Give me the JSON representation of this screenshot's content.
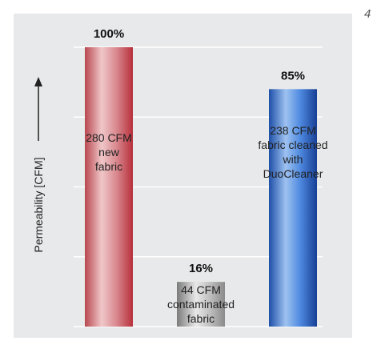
{
  "figure_number": "4",
  "colors": {
    "panel": "#e8e9ea",
    "grid": "#ffffff",
    "new_fabric": "#c8505a",
    "contaminated": "#9a9a9a",
    "cleaned": "#2f66c4"
  },
  "chart_data": {
    "type": "bar",
    "ylabel": "Permeability [CFM]",
    "ylim": [
      0,
      100
    ],
    "grid": true,
    "categories": [
      "new fabric",
      "contaminated fabric",
      "fabric cleaned with DuoCleaner"
    ],
    "values": [
      100,
      16,
      85
    ],
    "cfm": [
      280,
      44,
      238
    ],
    "bars": [
      {
        "percent": "100%",
        "label_lines": [
          "280 CFM",
          "new",
          "fabric"
        ],
        "gradient": "red"
      },
      {
        "percent": "16%",
        "label_lines": [
          "44 CFM",
          "contaminated",
          "fabric"
        ],
        "gradient": "grey"
      },
      {
        "percent": "85%",
        "label_lines": [
          "238 CFM",
          "fabric cleaned",
          "with",
          "DuoCleaner"
        ],
        "gradient": "blue"
      }
    ]
  }
}
